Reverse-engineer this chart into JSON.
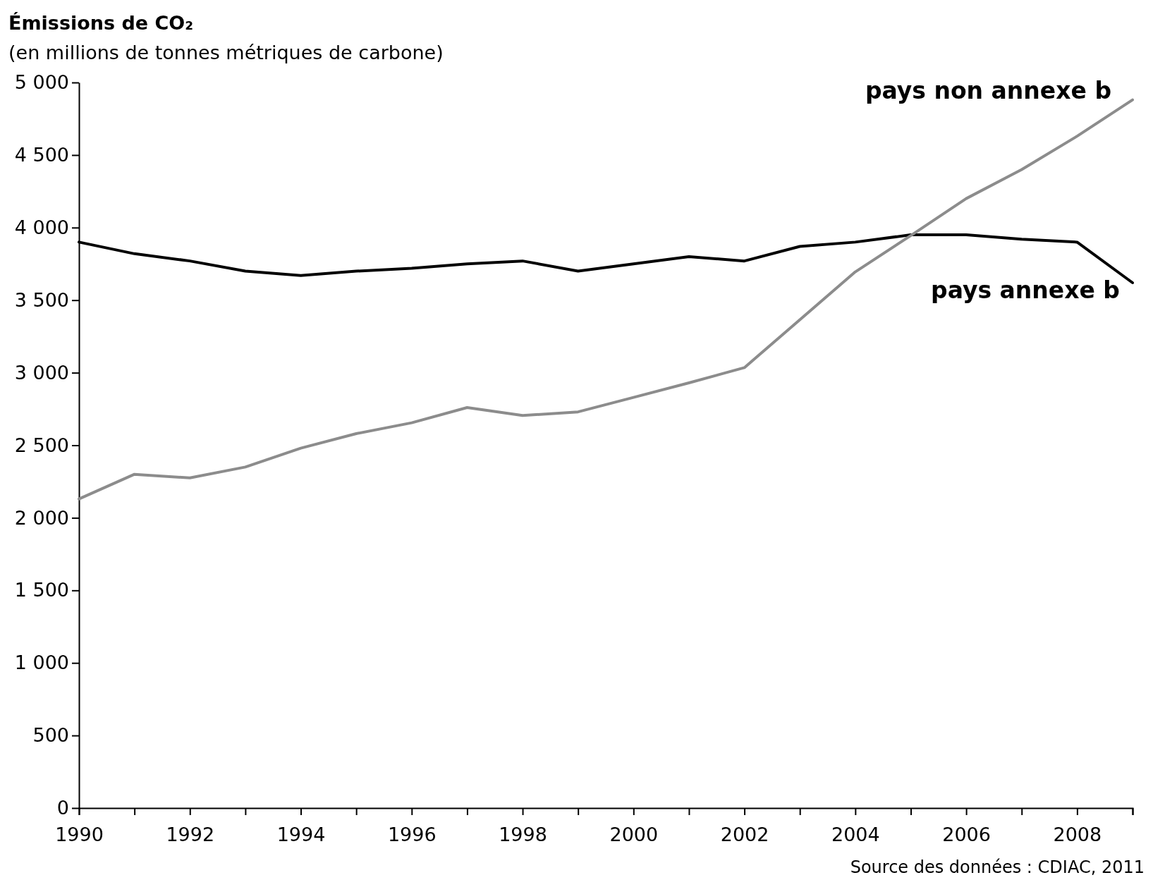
{
  "chart_data": {
    "type": "line",
    "title": "Émissions de CO₂",
    "subtitle": "(en millions de tonnes métriques de carbone)",
    "x": [
      1990,
      1991,
      1992,
      1993,
      1994,
      1995,
      1996,
      1997,
      1998,
      1999,
      2000,
      2001,
      2002,
      2003,
      2004,
      2005,
      2006,
      2007,
      2008,
      2009
    ],
    "series": [
      {
        "name": "pays annexe b",
        "color": "#000000",
        "values": [
          3900,
          3820,
          3770,
          3700,
          3670,
          3700,
          3720,
          3750,
          3770,
          3700,
          3750,
          3800,
          3770,
          3870,
          3900,
          3950,
          3950,
          3920,
          3900,
          3620
        ]
      },
      {
        "name": "pays non annexe b",
        "color": "#8c8c8c",
        "values": [
          2130,
          2300,
          2275,
          2350,
          2480,
          2580,
          2655,
          2760,
          2705,
          2730,
          2830,
          2930,
          3035,
          3365,
          3695,
          3945,
          4200,
          4400,
          4630,
          4880
        ]
      }
    ],
    "xlim": [
      1990,
      2009
    ],
    "xticks": [
      1990,
      {
        "value": 1991,
        "label": null
      },
      1992,
      {
        "value": 1993,
        "label": null
      },
      1994,
      {
        "value": 1995,
        "label": null
      },
      1996,
      {
        "value": 1997,
        "label": null
      },
      1998,
      {
        "value": 1999,
        "label": null
      },
      2000,
      {
        "value": 2001,
        "label": null
      },
      2002,
      {
        "value": 2003,
        "label": null
      },
      2004,
      {
        "value": 2005,
        "label": null
      },
      2006,
      {
        "value": 2007,
        "label": null
      },
      2008,
      {
        "value": 2009,
        "label": null
      }
    ],
    "ylim": [
      0,
      5000
    ],
    "yticks": [
      0,
      500,
      {
        "value": 1000,
        "label": "1 000"
      },
      {
        "value": 1500,
        "label": "1 500"
      },
      {
        "value": 2000,
        "label": "2 000"
      },
      {
        "value": 2500,
        "label": "2 500"
      },
      {
        "value": 3000,
        "label": "3 000"
      },
      {
        "value": 3500,
        "label": "3 500"
      },
      {
        "value": 4000,
        "label": "4 000"
      },
      {
        "value": 4500,
        "label": "4 500"
      },
      {
        "value": 5000,
        "label": "5 000"
      }
    ],
    "grid": false,
    "marker": "none",
    "line_style": "solid",
    "annotations": [
      "Source des données : CDIAC, 2011"
    ]
  }
}
